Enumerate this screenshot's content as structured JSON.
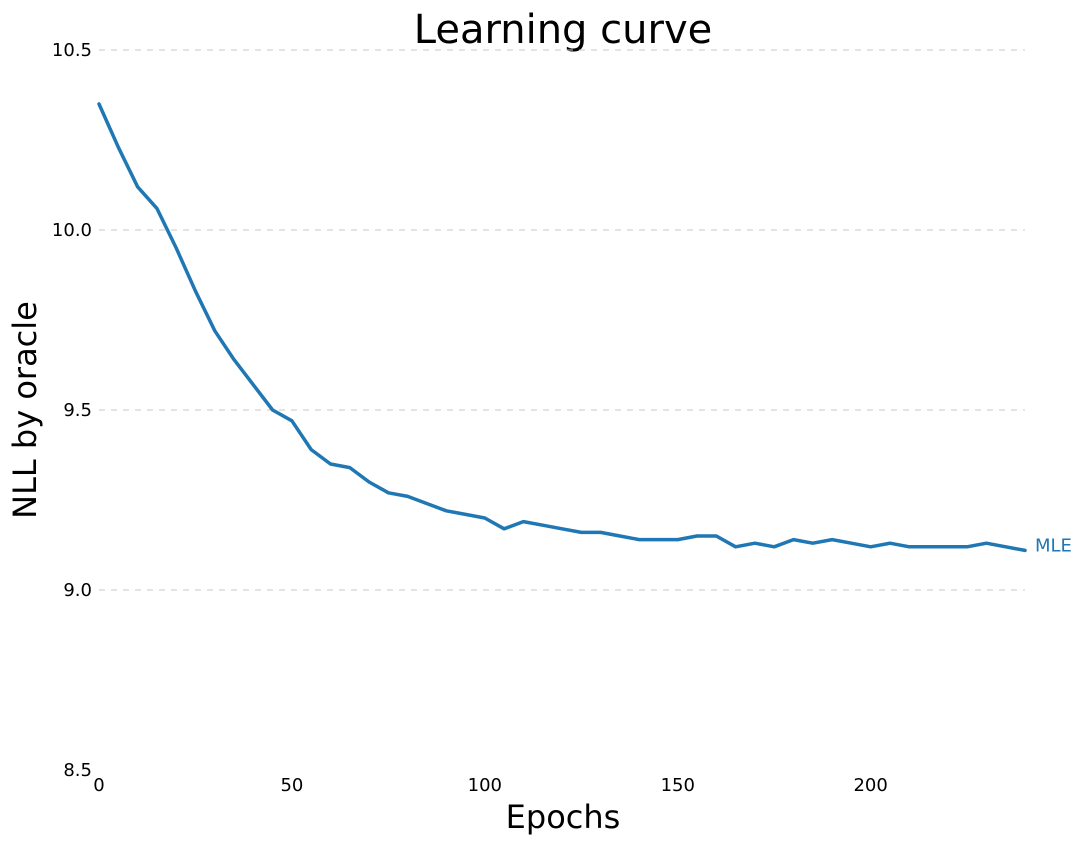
{
  "chart_data": {
    "type": "line",
    "title": "Learning curve",
    "xlabel": "Epochs",
    "ylabel": "NLL by oracle",
    "xlim": [
      0,
      240
    ],
    "ylim": [
      8.5,
      10.5
    ],
    "grid": "horizontal-dashed",
    "x_ticks": [
      0,
      50,
      100,
      150,
      200
    ],
    "y_ticks": [
      8.5,
      9.0,
      9.5,
      10.0,
      10.5
    ],
    "y_tick_labels": [
      "8.5",
      "9.0",
      "9.5",
      "10.0",
      "10.5"
    ],
    "series": [
      {
        "name": "MLE",
        "color": "#1f77b4",
        "x": [
          0,
          5,
          10,
          15,
          20,
          25,
          30,
          35,
          40,
          45,
          50,
          55,
          60,
          65,
          70,
          75,
          80,
          85,
          90,
          95,
          100,
          105,
          110,
          115,
          120,
          125,
          130,
          135,
          140,
          145,
          150,
          155,
          160,
          165,
          170,
          175,
          180,
          185,
          190,
          195,
          200,
          205,
          210,
          215,
          220,
          225,
          230,
          235,
          240
        ],
        "y": [
          10.35,
          10.23,
          10.12,
          10.06,
          9.95,
          9.83,
          9.72,
          9.64,
          9.57,
          9.5,
          9.47,
          9.39,
          9.35,
          9.34,
          9.3,
          9.27,
          9.26,
          9.24,
          9.22,
          9.21,
          9.2,
          9.17,
          9.19,
          9.18,
          9.17,
          9.16,
          9.16,
          9.15,
          9.14,
          9.14,
          9.14,
          9.15,
          9.15,
          9.12,
          9.13,
          9.12,
          9.14,
          9.13,
          9.14,
          9.13,
          9.12,
          9.13,
          9.12,
          9.12,
          9.12,
          9.12,
          9.13,
          9.12,
          9.11
        ]
      }
    ]
  }
}
